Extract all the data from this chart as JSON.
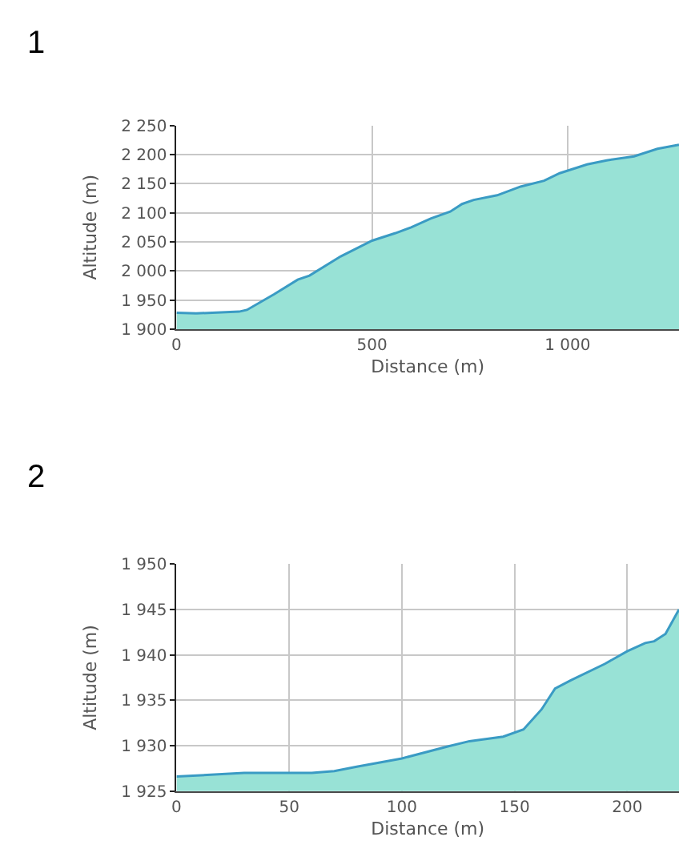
{
  "chart_data": [
    {
      "type": "area",
      "title": "1",
      "xlabel": "Distance (m)",
      "ylabel": "Altitude (m)",
      "grid": true,
      "marker": "none",
      "x": [
        0,
        50,
        160,
        180,
        250,
        310,
        340,
        420,
        500,
        560,
        600,
        650,
        700,
        730,
        760,
        820,
        880,
        940,
        980,
        1050,
        1100,
        1170,
        1230,
        1285
      ],
      "series": [
        {
          "color": "#3a9bc4",
          "values": [
            1928,
            1927,
            1930,
            1933,
            1960,
            1985,
            1992,
            2025,
            2052,
            2065,
            2075,
            2090,
            2102,
            2115,
            2122,
            2130,
            2145,
            2155,
            2168,
            2183,
            2190,
            2197,
            2210,
            2217
          ]
        }
      ],
      "xlim": [
        0,
        1285
      ],
      "xticks": [
        0,
        500,
        {
          "value": 1000,
          "label": "1 000"
        }
      ],
      "ylim": [
        1900,
        2250
      ],
      "yticks": [
        {
          "value": 1900,
          "label": "1 900"
        },
        {
          "value": 1950,
          "label": "1 950"
        },
        {
          "value": 2000,
          "label": "2 000"
        },
        {
          "value": 2050,
          "label": "2 050"
        },
        {
          "value": 2100,
          "label": "2 100"
        },
        {
          "value": 2150,
          "label": "2 150"
        },
        {
          "value": 2200,
          "label": "2 200"
        },
        {
          "value": 2250,
          "label": "2 250"
        }
      ]
    },
    {
      "type": "area",
      "title": "2",
      "xlabel": "Distance (m)",
      "ylabel": "Altitude (m)",
      "grid": true,
      "marker": "none",
      "x": [
        0,
        30,
        60,
        70,
        80,
        100,
        120,
        130,
        145,
        154,
        162,
        168,
        175,
        190,
        200,
        208,
        212,
        217,
        223
      ],
      "series": [
        {
          "color": "#3a9bc4",
          "values": [
            1926.6,
            1927,
            1927,
            1927.2,
            1927.7,
            1928.6,
            1929.9,
            1930.5,
            1931,
            1931.8,
            1934,
            1936.3,
            1937.2,
            1939,
            1940.4,
            1941.3,
            1941.5,
            1942.3,
            1945
          ]
        }
      ],
      "xlim": [
        0,
        223
      ],
      "xticks": [
        0,
        50,
        100,
        150,
        200
      ],
      "ylim": [
        1925,
        1950
      ],
      "yticks": [
        {
          "value": 1925,
          "label": "1 925"
        },
        {
          "value": 1930,
          "label": "1 930"
        },
        {
          "value": 1935,
          "label": "1 935"
        },
        {
          "value": 1940,
          "label": "1 940"
        },
        {
          "value": 1945,
          "label": "1 945"
        },
        {
          "value": 1950,
          "label": "1 950"
        }
      ]
    }
  ]
}
